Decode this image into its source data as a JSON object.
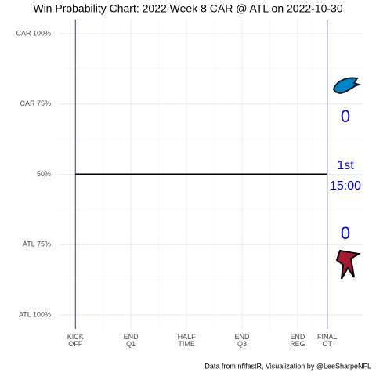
{
  "chart_data": {
    "type": "line",
    "title": "Win Probability Chart: 2022 Week 8 CAR @ ATL on 2022-10-30",
    "caption": "Data from nflfastR, Visualization by @LeeSharpeNFL",
    "x": [
      0,
      68
    ],
    "series": [
      {
        "name": "Win probability",
        "color": "#000000",
        "values": [
          50,
          50
        ]
      }
    ],
    "xlim": [
      -4.5,
      78
    ],
    "xticks": [
      {
        "value": 0,
        "label": "KICK\nOFF"
      },
      {
        "value": 15,
        "label": "END\nQ1"
      },
      {
        "value": 30,
        "label": "HALF\nTIME"
      },
      {
        "value": 45,
        "label": "END\nQ3"
      },
      {
        "value": 60,
        "label": "END\nREG"
      },
      {
        "value": 68,
        "label": "FINAL\nOT"
      }
    ],
    "ylim": [
      -5,
      105
    ],
    "yticks": [
      {
        "value": 100,
        "label": "CAR 100%"
      },
      {
        "value": 75,
        "label": "CAR 75%"
      },
      {
        "value": 50,
        "label": "50%"
      },
      {
        "value": 25,
        "label": "ATL 75%"
      },
      {
        "value": 0,
        "label": "ATL 100%"
      }
    ],
    "grid": true,
    "boundary_lines": [
      0,
      68
    ],
    "boundary_color": "#3c3c8c",
    "annotation_color": "#0000ee",
    "away_score": "0",
    "quarter": "1st",
    "clock": "15:00",
    "home_score": "0"
  }
}
